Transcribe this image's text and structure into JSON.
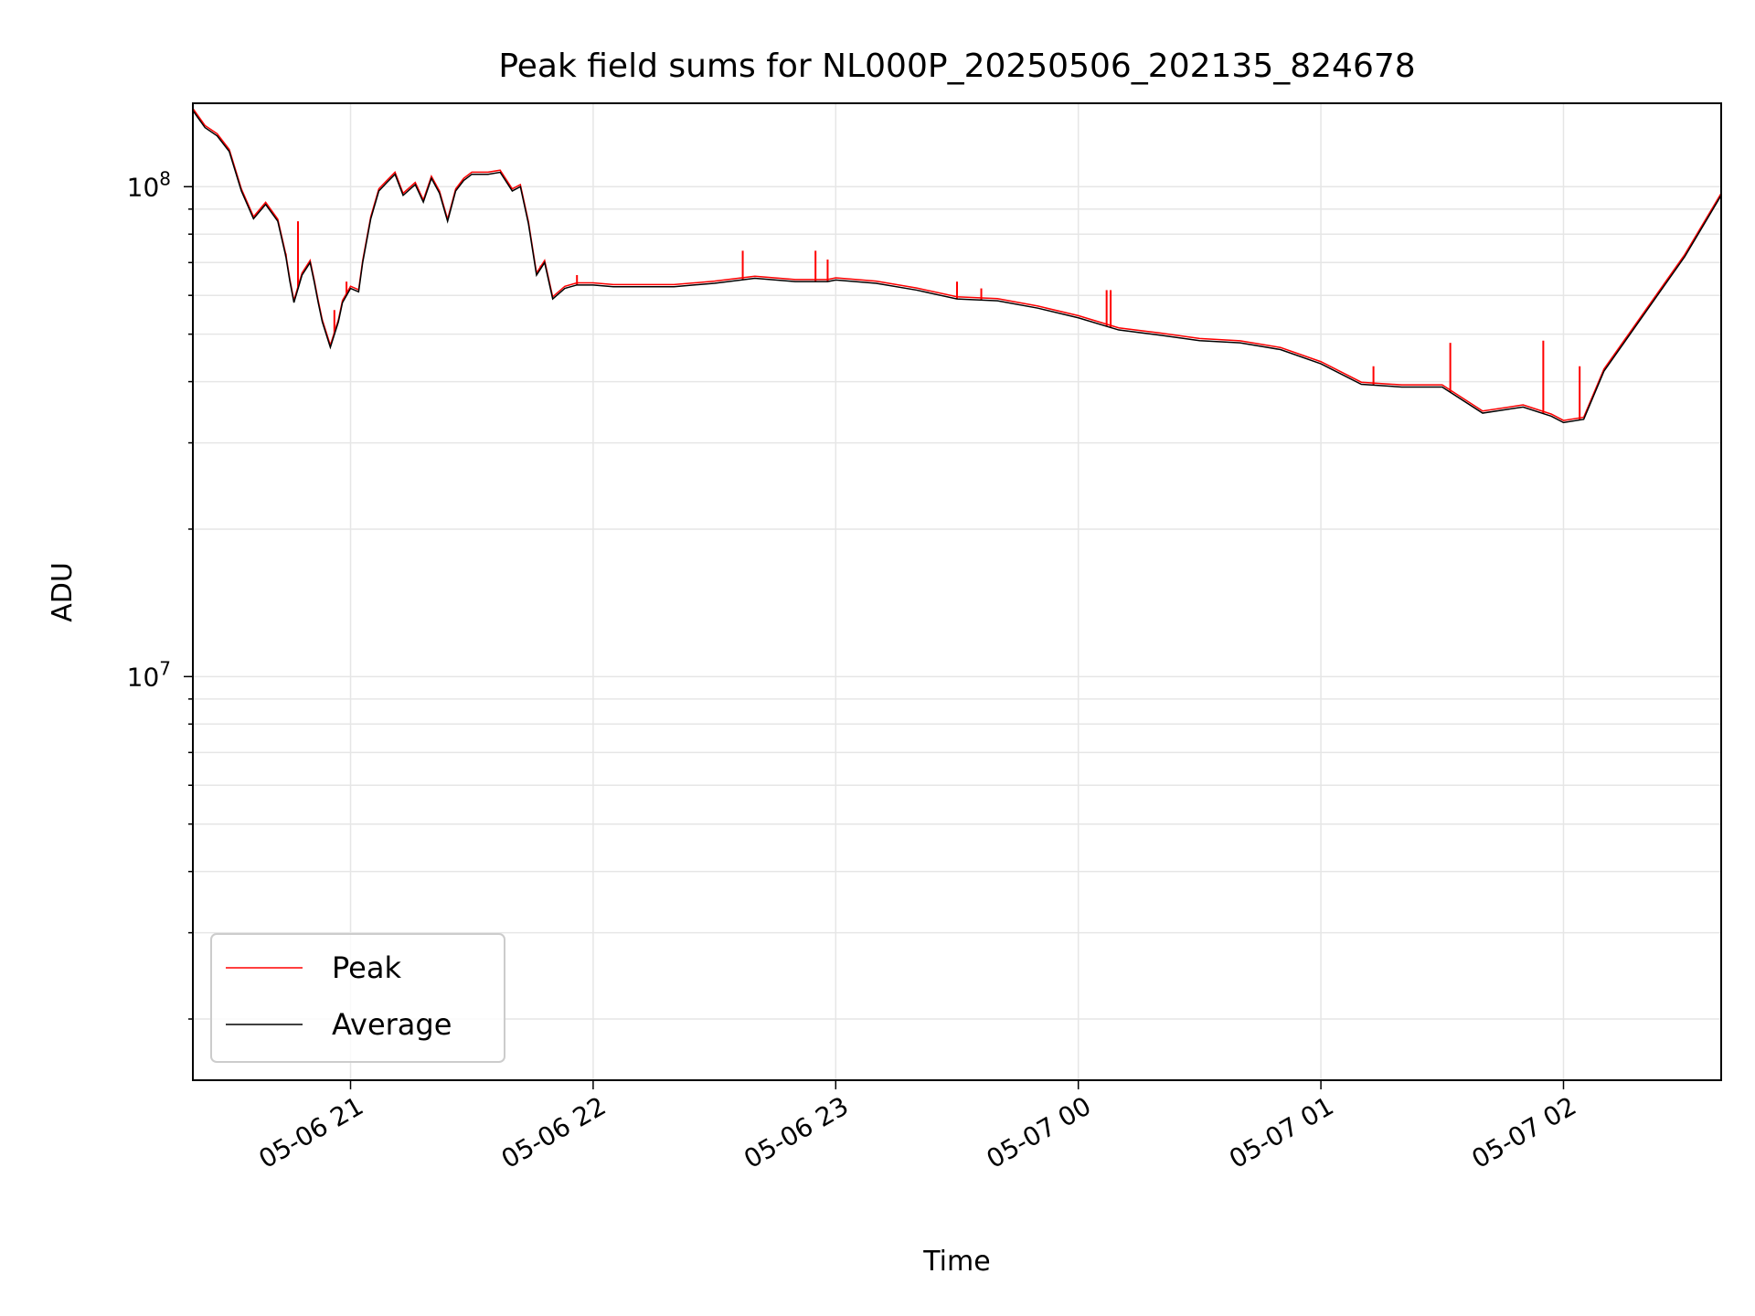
{
  "chart_data": {
    "type": "line",
    "title": "Peak field sums for NL000P_20250506_202135_824678",
    "xlabel": "Time",
    "ylabel": "ADU",
    "yscale": "log",
    "ylim": [
      1500000,
      148000000
    ],
    "xlim": [
      "2025-05-06 20:21",
      "2025-05-07 02:39"
    ],
    "grid": true,
    "legend_location": "lower left",
    "x_ticks": [
      "2025-05-06 21:00",
      "2025-05-06 22:00",
      "2025-05-06 23:00",
      "2025-05-07 00:00",
      "2025-05-07 01:00",
      "2025-05-07 02:00"
    ],
    "x_tick_labels": [
      "05-06 21",
      "05-06 22",
      "05-06 23",
      "05-07 00",
      "05-07 01",
      "05-07 02"
    ],
    "y_tick_labels": [
      {
        "base": "10",
        "exp": "7"
      },
      {
        "base": "10",
        "exp": "8"
      }
    ],
    "series": [
      {
        "name": "Average",
        "color": "#000000",
        "x": [
          "2025-05-06 20:21",
          "2025-05-06 20:24",
          "2025-05-06 20:27",
          "2025-05-06 20:30",
          "2025-05-06 20:33",
          "2025-05-06 20:36",
          "2025-05-06 20:39",
          "2025-05-06 20:42",
          "2025-05-06 20:44",
          "2025-05-06 20:45",
          "2025-05-06 20:46",
          "2025-05-06 20:48",
          "2025-05-06 20:50",
          "2025-05-06 20:51",
          "2025-05-06 20:52",
          "2025-05-06 20:53",
          "2025-05-06 20:55",
          "2025-05-06 20:57",
          "2025-05-06 20:58",
          "2025-05-06 21:00",
          "2025-05-06 21:02",
          "2025-05-06 21:03",
          "2025-05-06 21:05",
          "2025-05-06 21:07",
          "2025-05-06 21:09",
          "2025-05-06 21:11",
          "2025-05-06 21:13",
          "2025-05-06 21:16",
          "2025-05-06 21:18",
          "2025-05-06 21:20",
          "2025-05-06 21:22",
          "2025-05-06 21:24",
          "2025-05-06 21:26",
          "2025-05-06 21:28",
          "2025-05-06 21:30",
          "2025-05-06 21:32",
          "2025-05-06 21:34",
          "2025-05-06 21:37",
          "2025-05-06 21:40",
          "2025-05-06 21:42",
          "2025-05-06 21:44",
          "2025-05-06 21:46",
          "2025-05-06 21:48",
          "2025-05-06 21:50",
          "2025-05-06 21:53",
          "2025-05-06 21:56",
          "2025-05-06 22:00",
          "2025-05-06 22:05",
          "2025-05-06 22:10",
          "2025-05-06 22:20",
          "2025-05-06 22:30",
          "2025-05-06 22:40",
          "2025-05-06 22:50",
          "2025-05-06 22:58",
          "2025-05-06 23:00",
          "2025-05-06 23:10",
          "2025-05-06 23:20",
          "2025-05-06 23:30",
          "2025-05-06 23:40",
          "2025-05-06 23:50",
          "2025-05-07 00:00",
          "2025-05-07 00:10",
          "2025-05-07 00:20",
          "2025-05-07 00:30",
          "2025-05-07 00:40",
          "2025-05-07 00:50",
          "2025-05-07 01:00",
          "2025-05-07 01:10",
          "2025-05-07 01:20",
          "2025-05-07 01:30",
          "2025-05-07 01:40",
          "2025-05-07 01:50",
          "2025-05-07 01:57",
          "2025-05-07 02:00",
          "2025-05-07 02:05",
          "2025-05-07 02:10",
          "2025-05-07 02:20",
          "2025-05-07 02:30",
          "2025-05-07 02:39"
        ],
        "y": [
          143000000,
          132000000,
          127000000,
          118000000,
          98000000,
          86000000,
          92000000,
          85000000,
          72000000,
          64000000,
          58000000,
          66000000,
          70000000,
          64000000,
          58000000,
          53000000,
          47000000,
          53000000,
          58000000,
          62000000,
          61000000,
          70000000,
          86000000,
          98000000,
          102000000,
          106000000,
          96000000,
          101000000,
          93000000,
          104000000,
          97000000,
          85000000,
          98000000,
          103000000,
          106000000,
          106000000,
          106000000,
          107000000,
          98000000,
          100000000,
          84000000,
          66000000,
          70000000,
          59000000,
          62000000,
          63000000,
          63000000,
          62500000,
          62500000,
          62500000,
          63500000,
          65000000,
          64000000,
          64000000,
          64500000,
          63500000,
          61500000,
          59000000,
          58500000,
          56500000,
          54000000,
          51000000,
          49800000,
          48500000,
          48000000,
          46500000,
          43500000,
          39500000,
          39000000,
          39000000,
          34500000,
          35500000,
          34000000,
          33000000,
          33500000,
          42000000,
          55000000,
          72000000,
          96000000
        ]
      },
      {
        "name": "Peak",
        "color": "#ff0000",
        "spikes": [
          {
            "x": "2025-05-06 20:44",
            "y": 73000000
          },
          {
            "x": "2025-05-06 20:47",
            "y": 85000000
          },
          {
            "x": "2025-05-06 20:56",
            "y": 56000000
          },
          {
            "x": "2025-05-06 20:59",
            "y": 64000000
          },
          {
            "x": "2025-05-06 21:47",
            "y": 69000000
          },
          {
            "x": "2025-05-06 21:56",
            "y": 66000000
          },
          {
            "x": "2025-05-06 22:37",
            "y": 74000000
          },
          {
            "x": "2025-05-06 22:55",
            "y": 74000000
          },
          {
            "x": "2025-05-06 22:58",
            "y": 71000000
          },
          {
            "x": "2025-05-06 23:30",
            "y": 64000000
          },
          {
            "x": "2025-05-06 23:36",
            "y": 62000000
          },
          {
            "x": "2025-05-07 00:07",
            "y": 61500000
          },
          {
            "x": "2025-05-07 00:08",
            "y": 61500000
          },
          {
            "x": "2025-05-07 00:55",
            "y": 45000000
          },
          {
            "x": "2025-05-07 01:13",
            "y": 43000000
          },
          {
            "x": "2025-05-07 01:32",
            "y": 48000000
          },
          {
            "x": "2025-05-07 01:55",
            "y": 48500000
          },
          {
            "x": "2025-05-07 02:04",
            "y": 43000000
          }
        ]
      }
    ],
    "legend": [
      "Peak",
      "Average"
    ]
  }
}
